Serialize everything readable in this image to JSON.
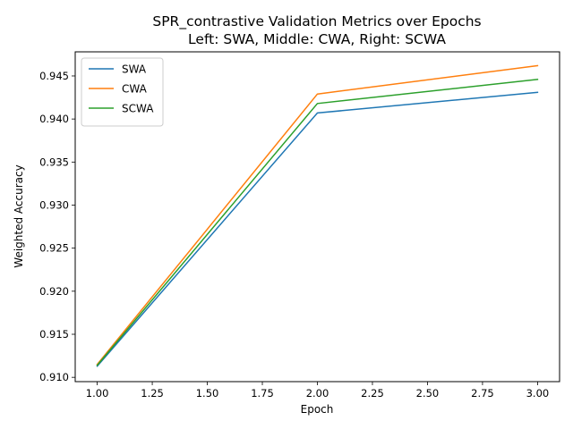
{
  "chart_data": {
    "type": "line",
    "title_lines": [
      "SPR_contrastive Validation Metrics over Epochs",
      "Left: SWA, Middle: CWA, Right: SCWA"
    ],
    "xlabel": "Epoch",
    "ylabel": "Weighted Accuracy",
    "x": [
      1.0,
      2.0,
      3.0
    ],
    "series": [
      {
        "name": "SWA",
        "color": "#1f77b4",
        "values": [
          0.9113,
          0.9407,
          0.9431
        ]
      },
      {
        "name": "CWA",
        "color": "#ff7f0e",
        "values": [
          0.9115,
          0.9429,
          0.9462
        ]
      },
      {
        "name": "SCWA",
        "color": "#2ca02c",
        "values": [
          0.9114,
          0.9418,
          0.9446
        ]
      }
    ],
    "xlim": [
      0.9,
      3.1
    ],
    "ylim": [
      0.9095,
      0.9478
    ],
    "xticks": [
      "1.00",
      "1.25",
      "1.50",
      "1.75",
      "2.00",
      "2.25",
      "2.50",
      "2.75",
      "3.00"
    ],
    "yticks": [
      "0.910",
      "0.915",
      "0.920",
      "0.925",
      "0.930",
      "0.935",
      "0.940",
      "0.945"
    ],
    "grid": false,
    "legend_position": "upper-left"
  }
}
